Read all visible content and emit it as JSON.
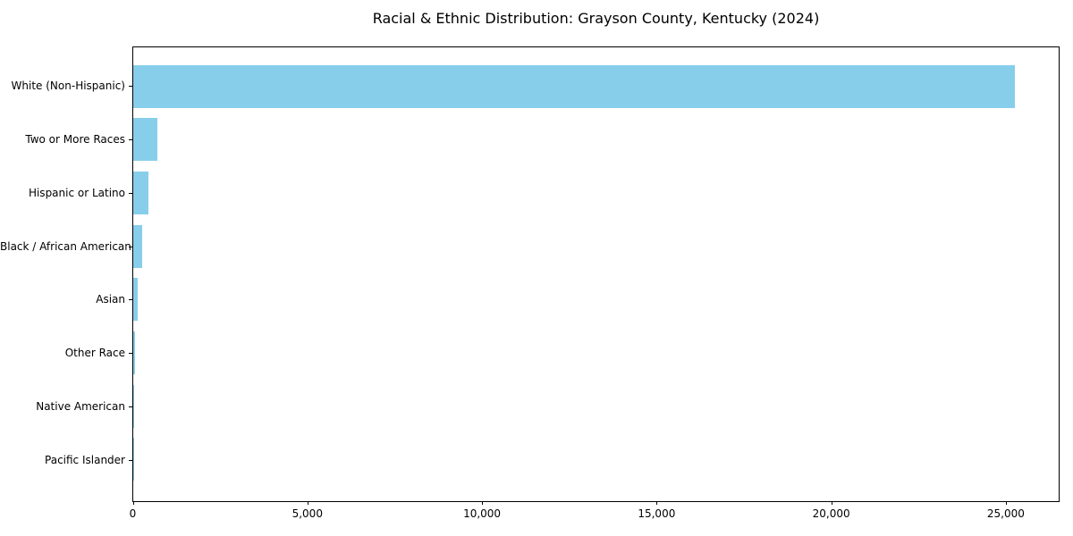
{
  "chart_data": {
    "type": "bar",
    "orientation": "horizontal",
    "title": "Racial & Ethnic Distribution: Grayson County, Kentucky (2024)",
    "categories": [
      "White (Non-Hispanic)",
      "Two or More Races",
      "Hispanic or Latino",
      "Black / African American",
      "Asian",
      "Other Race",
      "Native American",
      "Pacific Islander"
    ],
    "values": [
      25240,
      700,
      440,
      255,
      130,
      40,
      15,
      5
    ],
    "xlabel": "",
    "ylabel": "",
    "xlim": [
      0,
      26500
    ],
    "x_ticks": [
      0,
      5000,
      10000,
      15000,
      20000,
      25000
    ],
    "x_tick_labels": [
      "0",
      "5,000",
      "10,000",
      "15,000",
      "20,000",
      "25,000"
    ],
    "bar_color": "#87CEEB",
    "axis_color": "#000000",
    "background": "#FFFFFF",
    "grid": false,
    "legend": null
  }
}
